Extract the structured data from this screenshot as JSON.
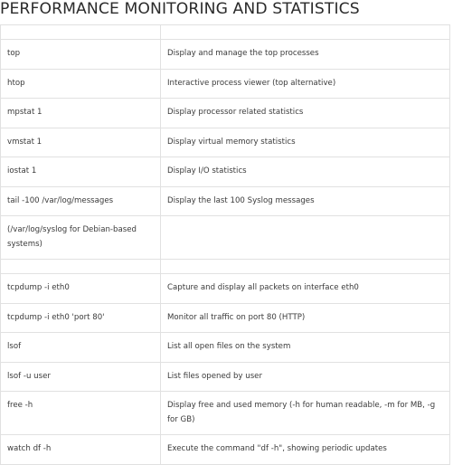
{
  "title": "PERFORMANCE MONITORING AND STATISTICS",
  "rows": [
    {
      "type": "spacer"
    },
    {
      "type": "row",
      "command": "top",
      "description": "Display and manage the top processes"
    },
    {
      "type": "row",
      "command": "htop",
      "description": "Interactive process viewer (top alternative)"
    },
    {
      "type": "row",
      "command": "mpstat 1",
      "description": "Display processor related statistics"
    },
    {
      "type": "row",
      "command": "vmstat 1",
      "description": "Display virtual memory statistics"
    },
    {
      "type": "row",
      "command": "iostat 1",
      "description": "Display I/O statistics"
    },
    {
      "type": "row",
      "command": "tail -100 /var/log/messages",
      "description": "Display the last 100 Syslog messages"
    },
    {
      "type": "row",
      "command": "(/var/log/syslog for Debian-based systems)",
      "description": ""
    },
    {
      "type": "spacer"
    },
    {
      "type": "row",
      "command": "tcpdump -i eth0",
      "description": "Capture and display all packets on interface eth0"
    },
    {
      "type": "row",
      "command": "tcpdump -i eth0 'port 80'",
      "description": "Monitor all traffic on port 80 (HTTP)"
    },
    {
      "type": "row",
      "command": "lsof",
      "description": "List all open files on the system"
    },
    {
      "type": "row",
      "command": "lsof -u user",
      "description": "List files opened by user"
    },
    {
      "type": "row",
      "command": "free -h",
      "description": "Display free and used memory (-h for human readable, -m for MB, -g for GB)"
    },
    {
      "type": "row",
      "command": "watch df -h",
      "description": "Execute the command \"df -h\", showing periodic updates"
    }
  ]
}
